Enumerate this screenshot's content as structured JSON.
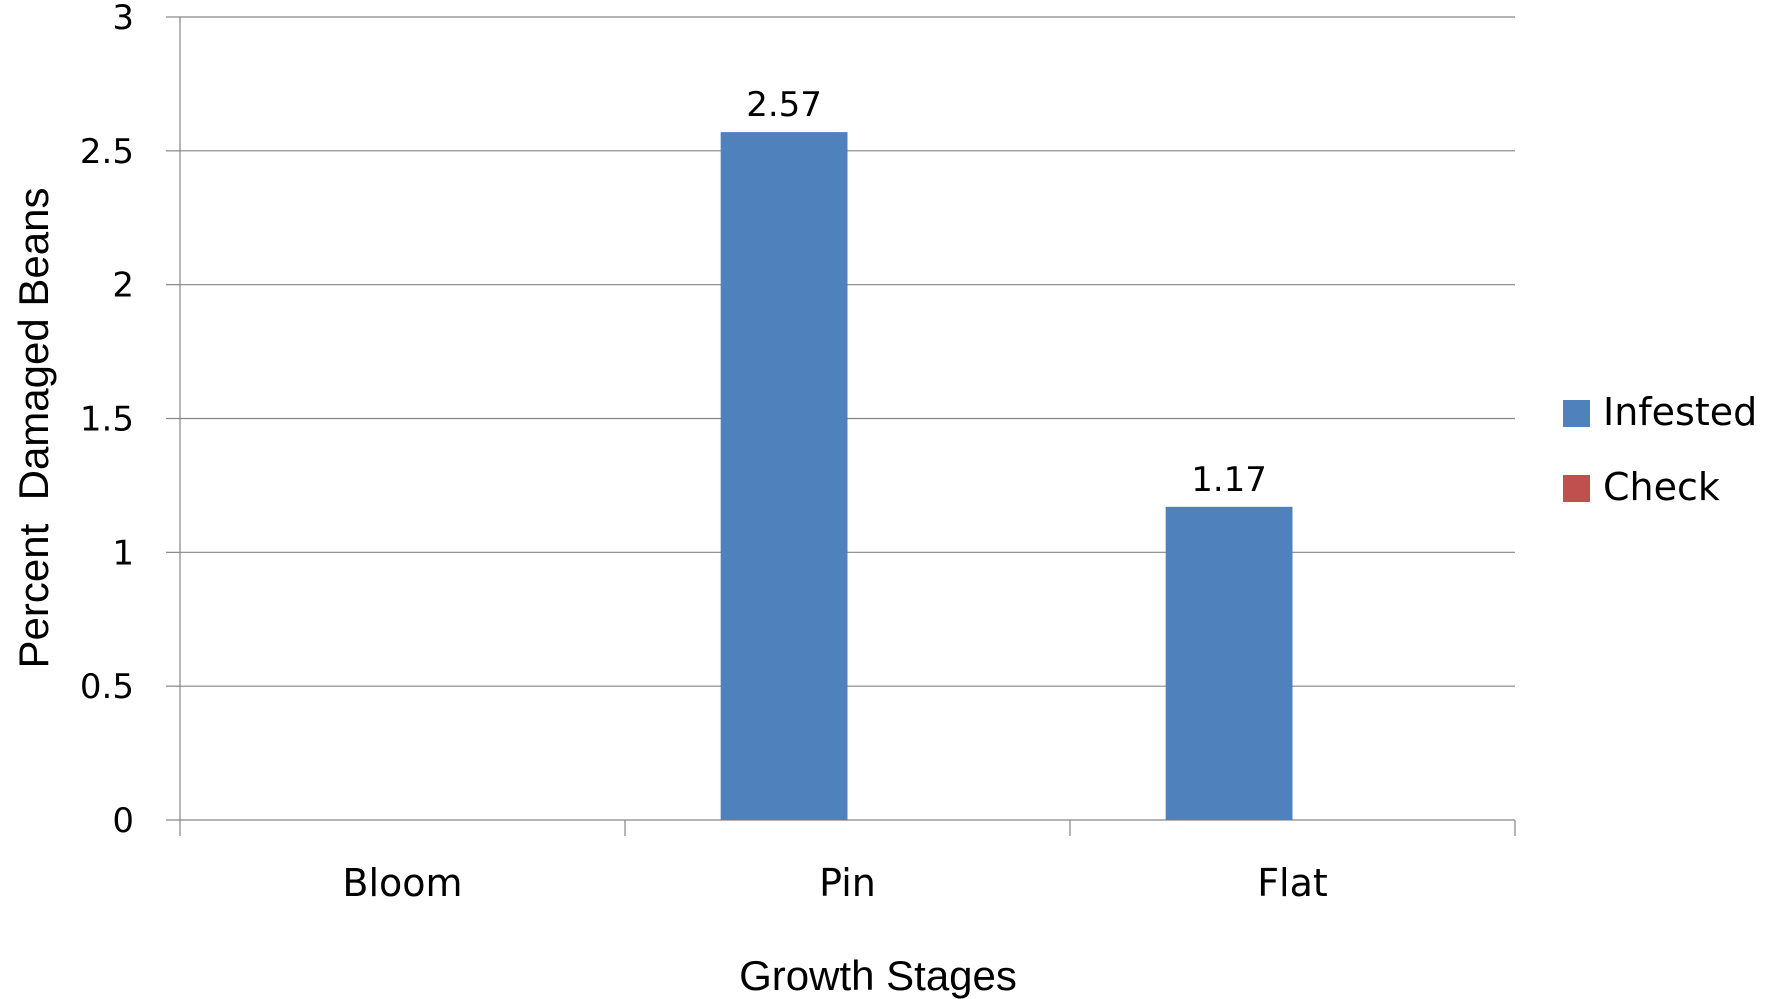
{
  "chart_data": {
    "type": "bar",
    "categories": [
      "Bloom",
      "Pin",
      "Flat"
    ],
    "series": [
      {
        "name": "Infested",
        "values": [
          0,
          2.57,
          1.17
        ],
        "color": "#4F81BD"
      },
      {
        "name": "Check",
        "values": [
          0,
          0,
          0
        ],
        "color": "#C0504D"
      }
    ],
    "data_labels": [
      "",
      "2.57",
      "1.17"
    ],
    "xlabel": "Growth Stages",
    "ylabel": "Percent  Damaged Beans",
    "ylim": [
      0,
      3
    ],
    "yticks": [
      0,
      0.5,
      1,
      1.5,
      2,
      2.5,
      3
    ],
    "ytick_labels": [
      "0",
      "0.5",
      "1",
      "1.5",
      "2",
      "2.5",
      "3"
    ],
    "grid": true,
    "legend_position": "right"
  }
}
